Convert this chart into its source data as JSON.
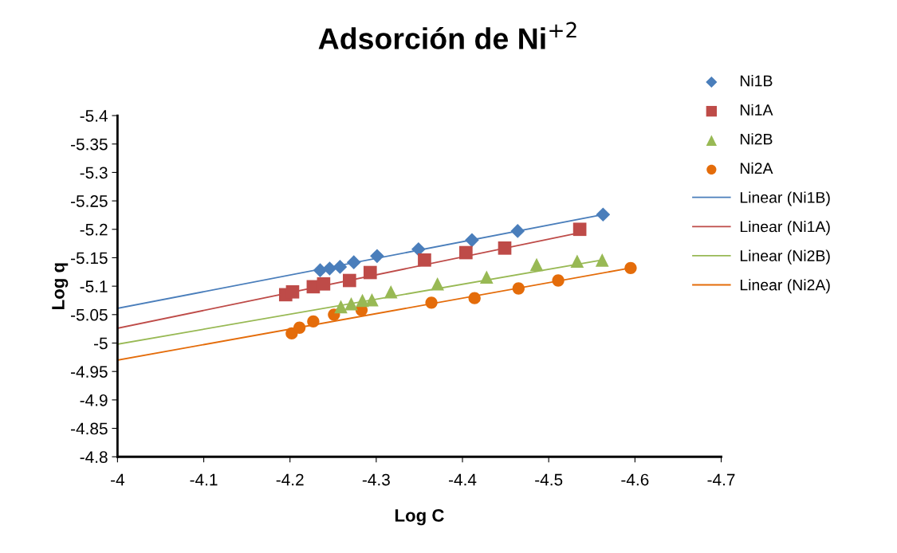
{
  "chart_data": {
    "type": "scatter",
    "title": "Adsorción de Ni$^{+2}$",
    "xlabel": "Log C",
    "ylabel": "Log q",
    "xlim": [
      -4,
      -4.7
    ],
    "ylim": [
      -4.8,
      -5.4
    ],
    "xticks": [
      -4,
      -4.1,
      -4.2,
      -4.3,
      -4.4,
      -4.5,
      -4.6,
      -4.7
    ],
    "yticks": [
      -4.8,
      -4.85,
      -4.9,
      -4.95,
      -5,
      -5.05,
      -5.1,
      -5.15,
      -5.2,
      -5.25,
      -5.3,
      -5.35,
      -5.4
    ],
    "grid": false,
    "legend": "right",
    "series": [
      {
        "name": "Ni1B",
        "color": "#4a7ebb",
        "marker": "diamond",
        "x": [
          -4.235,
          -4.246,
          -4.258,
          -4.274,
          -4.301,
          -4.349,
          -4.411,
          -4.464,
          -4.563
        ],
        "values": [
          -5.128,
          -5.131,
          -5.134,
          -5.142,
          -5.153,
          -5.165,
          -5.181,
          -5.197,
          -5.226
        ]
      },
      {
        "name": "Ni1A",
        "color": "#be4b48",
        "marker": "square",
        "x": [
          -4.195,
          -4.203,
          -4.227,
          -4.239,
          -4.269,
          -4.293,
          -4.356,
          -4.404,
          -4.449,
          -4.536
        ],
        "values": [
          -5.085,
          -5.09,
          -5.099,
          -5.104,
          -5.11,
          -5.124,
          -5.146,
          -5.159,
          -5.167,
          -5.2
        ]
      },
      {
        "name": "Ni2B",
        "color": "#98b954",
        "marker": "triangle",
        "x": [
          -4.259,
          -4.271,
          -4.284,
          -4.295,
          -4.317,
          -4.371,
          -4.428,
          -4.486,
          -4.533,
          -4.562
        ],
        "values": [
          -5.064,
          -5.069,
          -5.075,
          -5.076,
          -5.09,
          -5.104,
          -5.116,
          -5.138,
          -5.144,
          -5.146
        ]
      },
      {
        "name": "Ni2A",
        "color": "#e46c0a",
        "marker": "circle",
        "x": [
          -4.202,
          -4.211,
          -4.227,
          -4.251,
          -4.283,
          -4.364,
          -4.414,
          -4.465,
          -4.511,
          -4.595
        ],
        "values": [
          -5.017,
          -5.027,
          -5.038,
          -5.05,
          -5.058,
          -5.071,
          -5.079,
          -5.096,
          -5.11,
          -5.132
        ]
      },
      {
        "name": "Linear (Ni1B)",
        "type": "line",
        "color": "#4a7ebb",
        "marker": "none",
        "line_style": "solid",
        "x": [
          -4,
          -4.563
        ],
        "values": [
          -5.061,
          -5.226
        ]
      },
      {
        "name": "Linear (Ni1A)",
        "type": "line",
        "color": "#be4b48",
        "marker": "none",
        "line_style": "solid",
        "x": [
          -4,
          -4.536
        ],
        "values": [
          -5.026,
          -5.194
        ]
      },
      {
        "name": "Linear (Ni2B)",
        "type": "line",
        "color": "#98b954",
        "marker": "none",
        "line_style": "solid",
        "x": [
          -4,
          -4.562
        ],
        "values": [
          -4.998,
          -5.146
        ]
      },
      {
        "name": "Linear (Ni2A)",
        "type": "line",
        "color": "#e46c0a",
        "marker": "none",
        "line_style": "solid",
        "x": [
          -4,
          -4.595
        ],
        "values": [
          -4.97,
          -5.132
        ]
      }
    ]
  }
}
